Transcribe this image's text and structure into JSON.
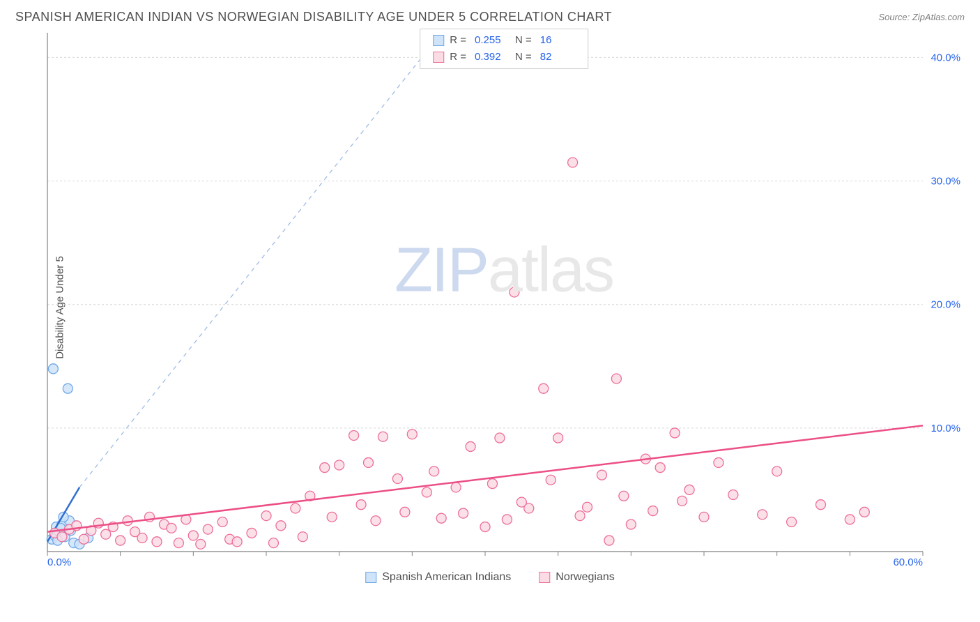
{
  "header": {
    "title": "SPANISH AMERICAN INDIAN VS NORWEGIAN DISABILITY AGE UNDER 5 CORRELATION CHART",
    "source": "Source: ZipAtlas.com"
  },
  "chart": {
    "type": "scatter",
    "ylabel": "Disability Age Under 5",
    "xlim": [
      0,
      60
    ],
    "ylim": [
      0,
      42
    ],
    "x_ticks": [
      0,
      5,
      10,
      15,
      20,
      25,
      30,
      35,
      40,
      45,
      50,
      55,
      60
    ],
    "x_tick_labels": {
      "0": "0.0%",
      "60": "60.0%"
    },
    "y_gridlines": [
      10,
      20,
      30,
      40
    ],
    "y_tick_labels": {
      "10": "10.0%",
      "20": "20.0%",
      "30": "30.0%",
      "40": "40.0%"
    },
    "background_color": "#ffffff",
    "grid_color": "#d8d8d8",
    "axis_color": "#808080",
    "tick_label_color": "#2563eb",
    "ylabel_color": "#505050",
    "series": [
      {
        "name": "Spanish American Indians",
        "marker_fill": "#cfe3f9",
        "marker_stroke": "#6fa8e8",
        "marker_r": 7,
        "line_color": "#2f6fd1",
        "line_dash_color": "#9fbce6",
        "R": "0.255",
        "N": "16",
        "trend": {
          "x1": 0,
          "y1": 0.8,
          "x2": 2.2,
          "y2": 5.2,
          "dash_x2": 27,
          "dash_y2": 42
        },
        "points": [
          [
            0.3,
            1.0
          ],
          [
            0.5,
            1.3
          ],
          [
            0.6,
            2.0
          ],
          [
            0.8,
            1.6
          ],
          [
            1.0,
            2.2
          ],
          [
            1.2,
            1.2
          ],
          [
            1.5,
            2.5
          ],
          [
            0.4,
            14.8
          ],
          [
            1.4,
            13.2
          ],
          [
            1.8,
            0.7
          ],
          [
            2.2,
            0.6
          ],
          [
            2.8,
            1.1
          ],
          [
            0.9,
            1.9
          ],
          [
            1.1,
            2.8
          ],
          [
            0.7,
            0.9
          ],
          [
            1.6,
            1.7
          ]
        ]
      },
      {
        "name": "Norwegians",
        "marker_fill": "#fbdbe4",
        "marker_stroke": "#ec6f9a",
        "marker_r": 7,
        "line_color": "#ec4e86",
        "R": "0.392",
        "N": "82",
        "trend": {
          "x1": 0,
          "y1": 1.6,
          "x2": 60,
          "y2": 10.2
        },
        "points": [
          [
            0.5,
            1.5
          ],
          [
            1,
            1.2
          ],
          [
            1.5,
            1.8
          ],
          [
            2,
            2.1
          ],
          [
            2.5,
            1.0
          ],
          [
            3,
            1.7
          ],
          [
            3.5,
            2.3
          ],
          [
            4,
            1.4
          ],
          [
            4.5,
            2.0
          ],
          [
            5,
            0.9
          ],
          [
            5.5,
            2.5
          ],
          [
            6,
            1.6
          ],
          [
            6.5,
            1.1
          ],
          [
            7,
            2.8
          ],
          [
            7.5,
            0.8
          ],
          [
            8,
            2.2
          ],
          [
            8.5,
            1.9
          ],
          [
            9,
            0.7
          ],
          [
            9.5,
            2.6
          ],
          [
            10,
            1.3
          ],
          [
            10.5,
            0.6
          ],
          [
            11,
            1.8
          ],
          [
            12,
            2.4
          ],
          [
            12.5,
            1.0
          ],
          [
            13,
            0.8
          ],
          [
            14,
            1.5
          ],
          [
            15,
            2.9
          ],
          [
            15.5,
            0.7
          ],
          [
            16,
            2.1
          ],
          [
            17,
            3.5
          ],
          [
            17.5,
            1.2
          ],
          [
            18,
            4.5
          ],
          [
            19,
            6.8
          ],
          [
            19.5,
            2.8
          ],
          [
            20,
            7.0
          ],
          [
            21,
            9.4
          ],
          [
            21.5,
            3.8
          ],
          [
            22,
            7.2
          ],
          [
            22.5,
            2.5
          ],
          [
            23,
            9.3
          ],
          [
            24,
            5.9
          ],
          [
            24.5,
            3.2
          ],
          [
            25,
            9.5
          ],
          [
            26,
            4.8
          ],
          [
            26.5,
            6.5
          ],
          [
            27,
            2.7
          ],
          [
            28,
            5.2
          ],
          [
            28.5,
            3.1
          ],
          [
            29,
            8.5
          ],
          [
            30,
            2.0
          ],
          [
            30.5,
            5.5
          ],
          [
            31,
            9.2
          ],
          [
            31.5,
            2.6
          ],
          [
            32,
            21.0
          ],
          [
            32.5,
            4.0
          ],
          [
            33,
            3.5
          ],
          [
            34,
            13.2
          ],
          [
            34.5,
            5.8
          ],
          [
            35,
            9.2
          ],
          [
            36,
            31.5
          ],
          [
            36.5,
            2.9
          ],
          [
            37,
            3.6
          ],
          [
            38,
            6.2
          ],
          [
            38.5,
            0.9
          ],
          [
            39,
            14.0
          ],
          [
            39.5,
            4.5
          ],
          [
            40,
            2.2
          ],
          [
            41,
            7.5
          ],
          [
            41.5,
            3.3
          ],
          [
            42,
            6.8
          ],
          [
            43,
            9.6
          ],
          [
            43.5,
            4.1
          ],
          [
            44,
            5.0
          ],
          [
            45,
            2.8
          ],
          [
            46,
            7.2
          ],
          [
            47,
            4.6
          ],
          [
            49,
            3.0
          ],
          [
            50,
            6.5
          ],
          [
            51,
            2.4
          ],
          [
            53,
            3.8
          ],
          [
            55,
            2.6
          ],
          [
            56,
            3.2
          ]
        ]
      }
    ],
    "legend_bottom": [
      {
        "label": "Spanish American Indians",
        "fill": "#cfe3f9",
        "stroke": "#6fa8e8"
      },
      {
        "label": "Norwegians",
        "fill": "#fbdbe4",
        "stroke": "#ec6f9a"
      }
    ],
    "watermark": {
      "zip": "ZIP",
      "rest": "atlas"
    }
  }
}
